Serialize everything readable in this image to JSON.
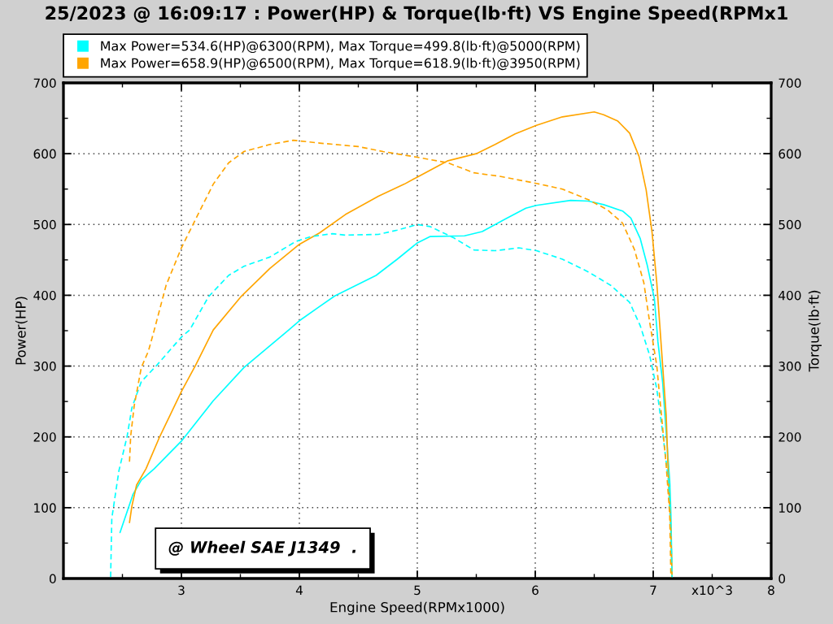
{
  "chart_data": {
    "type": "line",
    "title": "25/2023 @ 16:09:17 : Power(HP) & Torque(lb·ft) VS Engine Speed(RPMx1",
    "xlabel": "Engine Speed(RPMx1000)",
    "ylabel": "Power(HP)",
    "y2label": "Torque(lb·ft)",
    "annotations": [
      "@ Wheel SAE J1349  .",
      "x10^3"
    ],
    "xlim": [
      2,
      8
    ],
    "xticks": [
      {
        "value": 2,
        "label": null
      },
      3,
      4,
      5,
      6,
      7,
      8
    ],
    "ylim": [
      0,
      700
    ],
    "yticks": [
      0,
      100,
      200,
      300,
      400,
      500,
      600,
      700
    ],
    "y2lim": [
      0,
      700
    ],
    "y2ticks": [
      0,
      100,
      200,
      300,
      400,
      500,
      600,
      700
    ],
    "grid": true,
    "legend": "top left",
    "series": [
      {
        "name": "Max Power=534.6(HP)@6300(RPM), Max Torque=499.8(lb·ft)@5000(RPM)",
        "color": "#00ffff",
        "line_style": "solid",
        "x": [
          2.48,
          2.59,
          2.66,
          2.77,
          3.0,
          3.27,
          3.53,
          3.91,
          4.0,
          4.17,
          4.3,
          4.65,
          4.83,
          5.0,
          5.11,
          5.4,
          5.55,
          5.75,
          5.92,
          6.01,
          6.3,
          6.45,
          6.58,
          6.74,
          6.81,
          6.89,
          6.95,
          7.01,
          7.04,
          7.08,
          7.11,
          7.14,
          7.15,
          7.16
        ],
        "values": [
          65,
          119,
          139,
          155,
          194,
          251,
          298,
          351,
          364,
          384,
          399,
          428,
          451,
          474,
          483,
          484,
          490,
          508,
          523,
          527,
          534,
          533,
          528,
          519,
          509,
          480,
          442,
          395,
          334,
          277,
          206,
          137,
          90,
          0
        ]
      },
      {
        "color": "#00ffff",
        "line_style": "dashed",
        "axis": "y2",
        "x": [
          2.4,
          2.41,
          2.47,
          2.54,
          2.58,
          2.66,
          2.79,
          3.0,
          3.07,
          3.23,
          3.4,
          3.53,
          3.75,
          3.97,
          4.1,
          4.28,
          4.39,
          4.67,
          4.83,
          5.0,
          5.11,
          5.31,
          5.48,
          5.66,
          5.86,
          6.01,
          6.23,
          6.45,
          6.64,
          6.8,
          6.89,
          6.97,
          7.03,
          7.08,
          7.13,
          7.15,
          7.16
        ],
        "values": [
          2,
          85,
          152,
          201,
          241,
          278,
          301,
          341,
          351,
          398,
          428,
          441,
          454,
          476,
          483,
          487,
          485,
          486,
          492,
          500,
          497,
          481,
          464,
          463,
          467,
          463,
          451,
          433,
          414,
          390,
          357,
          315,
          268,
          206,
          137,
          66,
          0
        ]
      },
      {
        "name": "Max Power=658.9(HP)@6500(RPM), Max Torque=618.9(lb·ft)@3950(RPM)",
        "color": "#ffa500",
        "line_style": "solid",
        "x": [
          2.56,
          2.58,
          2.62,
          2.7,
          2.81,
          3.0,
          3.12,
          3.27,
          3.51,
          3.75,
          4.0,
          4.17,
          4.39,
          4.67,
          4.89,
          5.0,
          5.26,
          5.5,
          5.66,
          5.83,
          6.01,
          6.23,
          6.5,
          6.58,
          6.7,
          6.8,
          6.88,
          6.94,
          6.99,
          7.03,
          7.07,
          7.11,
          7.13,
          7.15,
          7.16
        ],
        "values": [
          79,
          102,
          132,
          155,
          198,
          264,
          301,
          351,
          399,
          438,
          472,
          488,
          514,
          540,
          557,
          567,
          590,
          600,
          613,
          628,
          640,
          652,
          659,
          655,
          646,
          629,
          596,
          549,
          489,
          418,
          324,
          230,
          137,
          66,
          0
        ]
      },
      {
        "color": "#ffa500",
        "line_style": "dashed",
        "axis": "y2",
        "x": [
          2.56,
          2.57,
          2.6,
          2.66,
          2.72,
          2.77,
          2.87,
          3.0,
          3.14,
          3.27,
          3.4,
          3.53,
          3.75,
          3.95,
          4.17,
          4.5,
          4.71,
          5.0,
          5.26,
          5.48,
          5.7,
          6.01,
          6.23,
          6.45,
          6.61,
          6.74,
          6.84,
          6.92,
          6.97,
          7.03,
          7.07,
          7.11,
          7.14,
          7.15
        ],
        "values": [
          165,
          201,
          244,
          298,
          321,
          351,
          414,
          467,
          514,
          557,
          587,
          603,
          613,
          619,
          615,
          610,
          603,
          595,
          587,
          573,
          568,
          558,
          550,
          535,
          521,
          502,
          465,
          418,
          362,
          301,
          230,
          160,
          90,
          0
        ]
      }
    ]
  }
}
